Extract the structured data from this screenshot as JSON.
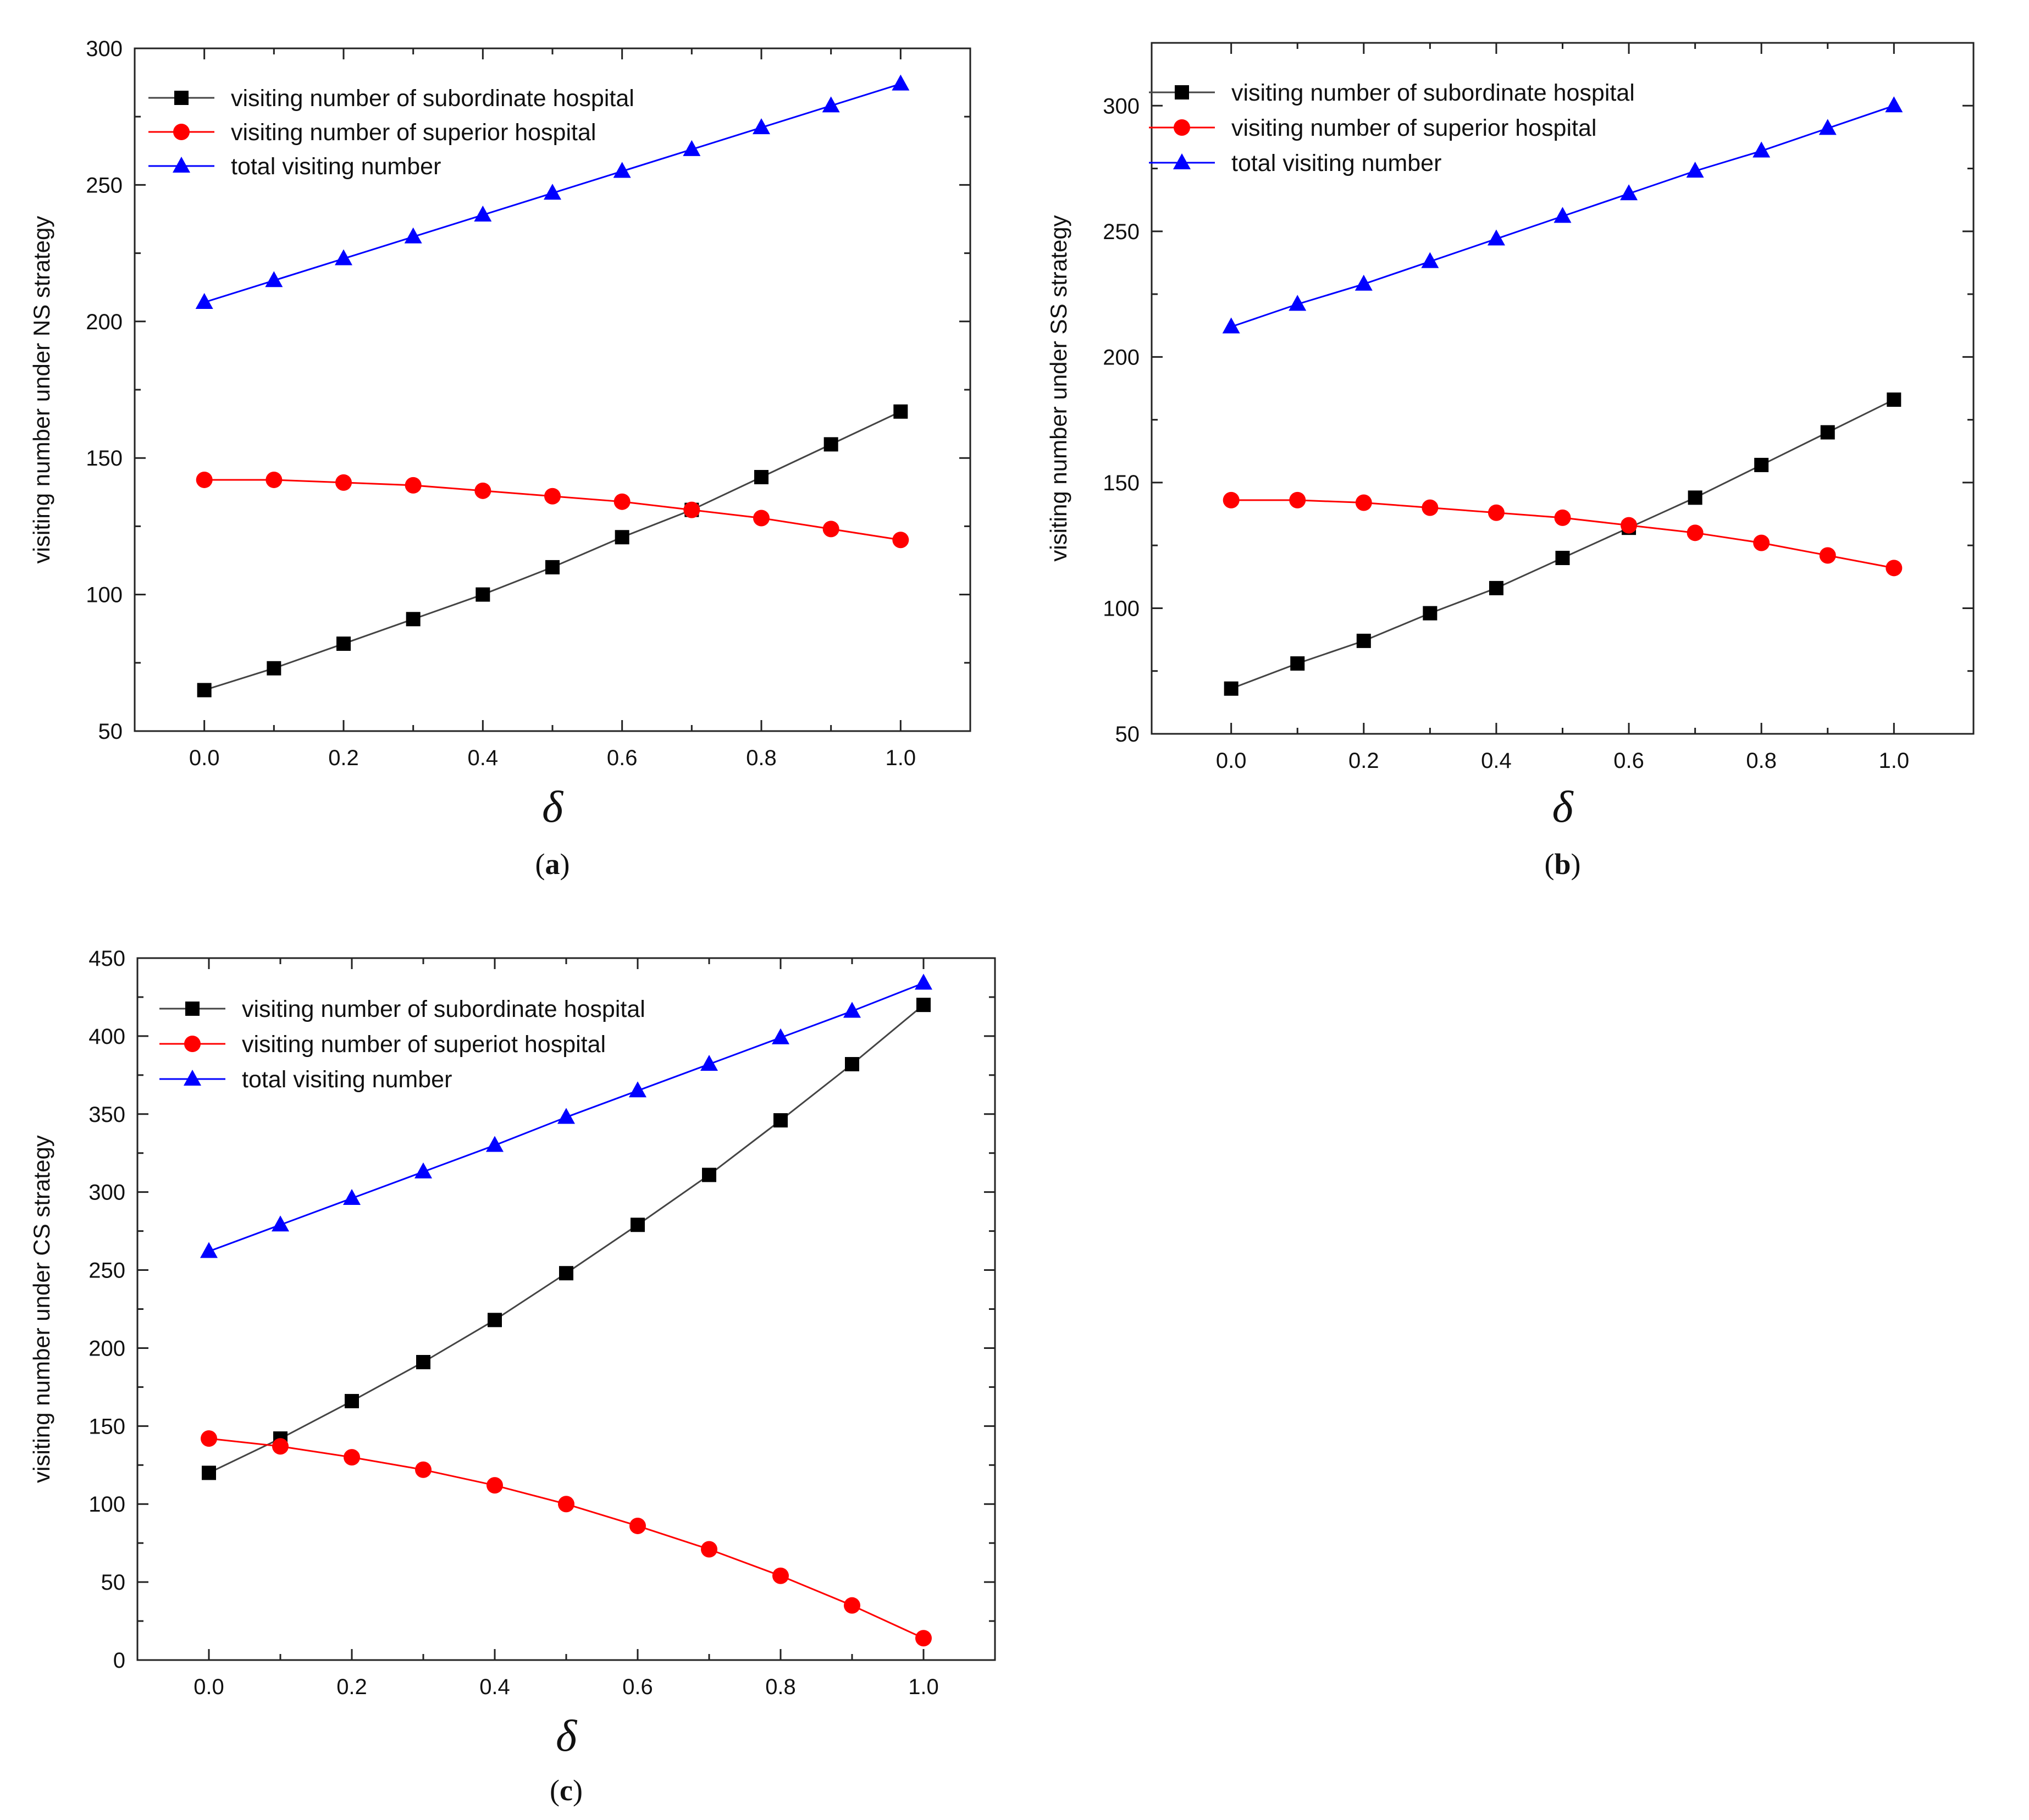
{
  "chart_data": [
    {
      "id": "a",
      "type": "line",
      "caption": {
        "open": "(",
        "letter": "a",
        "close": ")"
      },
      "xlabel": "δ",
      "ylabel": "visiting number under NS strategy",
      "xlim": [
        -0.1,
        1.1
      ],
      "ylim": [
        50,
        300
      ],
      "xticks": [
        "0.0",
        "0.2",
        "0.4",
        "0.6",
        "0.8",
        "1.0"
      ],
      "yticks": [
        "50",
        "100",
        "150",
        "200",
        "250",
        "300"
      ],
      "legend_position": "top-left",
      "x": [
        0.0,
        0.1,
        0.2,
        0.3,
        0.4,
        0.5,
        0.6,
        0.7,
        0.8,
        0.9,
        1.0
      ],
      "series": [
        {
          "name": "visiting number of subordinate hospital",
          "color": "#000000",
          "line_color": "#444444",
          "marker": "square",
          "values": [
            65,
            73,
            82,
            91,
            100,
            110,
            121,
            131,
            143,
            155,
            167
          ]
        },
        {
          "name": "visiting number of superior hospital",
          "color": "#ff0000",
          "line_color": "#ff0000",
          "marker": "circle",
          "values": [
            142,
            142,
            141,
            140,
            138,
            136,
            134,
            131,
            128,
            124,
            120
          ]
        },
        {
          "name": "total visiting number",
          "color": "#0000ff",
          "line_color": "#0000ff",
          "marker": "triangle",
          "values": [
            207,
            215,
            223,
            231,
            239,
            247,
            255,
            263,
            271,
            279,
            287
          ]
        }
      ]
    },
    {
      "id": "b",
      "type": "line",
      "caption": {
        "open": "(",
        "letter": "b",
        "close": ")"
      },
      "xlabel": "δ",
      "ylabel": "visiting number under SS strategy",
      "xlim": [
        -0.12,
        1.12
      ],
      "ylim": [
        50,
        325
      ],
      "xticks": [
        "0.0",
        "0.2",
        "0.4",
        "0.6",
        "0.8",
        "1.0"
      ],
      "yticks": [
        "50",
        "100",
        "150",
        "200",
        "250",
        "300"
      ],
      "legend_position": "top-left",
      "x": [
        0.0,
        0.1,
        0.2,
        0.3,
        0.4,
        0.5,
        0.6,
        0.7,
        0.8,
        0.9,
        1.0
      ],
      "series": [
        {
          "name": "visiting number of subordinate hospital",
          "color": "#000000",
          "line_color": "#444444",
          "marker": "square",
          "values": [
            68,
            78,
            87,
            98,
            108,
            120,
            132,
            144,
            157,
            170,
            183
          ]
        },
        {
          "name": "visiting number of superior hospital",
          "color": "#ff0000",
          "line_color": "#ff0000",
          "marker": "circle",
          "values": [
            143,
            143,
            142,
            140,
            138,
            136,
            133,
            130,
            126,
            121,
            116
          ]
        },
        {
          "name": "total visiting number",
          "color": "#0000ff",
          "line_color": "#0000ff",
          "marker": "triangle",
          "values": [
            212,
            221,
            229,
            238,
            247,
            256,
            265,
            274,
            282,
            291,
            300
          ]
        }
      ]
    },
    {
      "id": "c",
      "type": "line",
      "caption": {
        "open": "(",
        "letter": "c",
        "close": ")"
      },
      "xlabel": "δ",
      "ylabel": "visiting number under CS strategy",
      "xlim": [
        -0.1,
        1.1
      ],
      "ylim": [
        0,
        450
      ],
      "xticks": [
        "0.0",
        "0.2",
        "0.4",
        "0.6",
        "0.8",
        "1.0"
      ],
      "yticks": [
        "0",
        "50",
        "100",
        "150",
        "200",
        "250",
        "300",
        "350",
        "400",
        "450"
      ],
      "legend_position": "top-left",
      "x": [
        0.0,
        0.1,
        0.2,
        0.3,
        0.4,
        0.5,
        0.6,
        0.7,
        0.8,
        0.9,
        1.0
      ],
      "series": [
        {
          "name": "visiting number of subordinate hospital",
          "color": "#000000",
          "line_color": "#444444",
          "marker": "square",
          "values": [
            120,
            142,
            166,
            191,
            218,
            248,
            279,
            311,
            346,
            382,
            420
          ]
        },
        {
          "name": "visiting number of superiot hospital",
          "color": "#ff0000",
          "line_color": "#ff0000",
          "marker": "circle",
          "values": [
            142,
            137,
            130,
            122,
            112,
            100,
            86,
            71,
            54,
            35,
            14
          ]
        },
        {
          "name": "total visiting number",
          "color": "#0000ff",
          "line_color": "#0000ff",
          "marker": "triangle",
          "values": [
            262,
            279,
            296,
            313,
            330,
            348,
            365,
            382,
            399,
            416,
            434
          ]
        }
      ]
    }
  ]
}
